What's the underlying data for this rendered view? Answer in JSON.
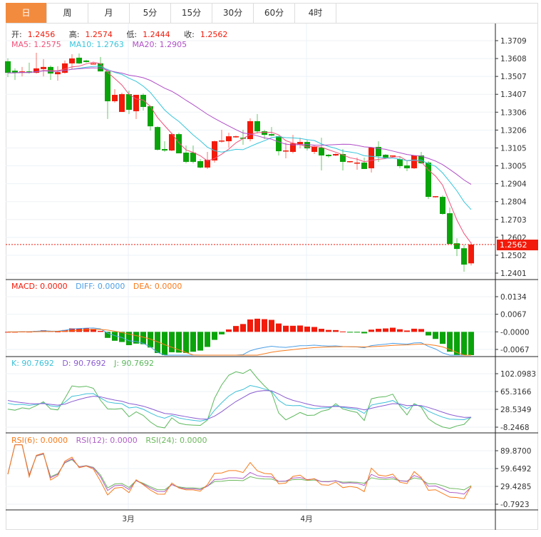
{
  "tabs": [
    {
      "label": "日",
      "active": true
    },
    {
      "label": "周",
      "active": false
    },
    {
      "label": "月",
      "active": false
    },
    {
      "label": "5分",
      "active": false
    },
    {
      "label": "15分",
      "active": false
    },
    {
      "label": "30分",
      "active": false
    },
    {
      "label": "60分",
      "active": false
    },
    {
      "label": "4时",
      "active": false
    }
  ],
  "ohlc_legend": {
    "open_label": "开:",
    "open": "1.2456",
    "high_label": "高:",
    "high": "1.2574",
    "low_label": "低:",
    "low": "1.2444",
    "close_label": "收:",
    "close": "1.2562"
  },
  "ma_legend": {
    "ma5": "MA5: 1.2575",
    "ma10": "MA10: 1.2763",
    "ma20": "MA20: 1.2905"
  },
  "macd_legend": {
    "macd": "MACD: 0.0000",
    "diff": "DIFF: 0.0000",
    "dea": "DEA: 0.0000"
  },
  "kdj_legend": {
    "k": "K: 90.7692",
    "d": "D: 90.7692",
    "j": "J: 90.7692"
  },
  "rsi_legend": {
    "rsi6": "RSI(6): 0.0000",
    "rsi12": "RSI(12): 0.0000",
    "rsi24": "RSI(24): 0.0000"
  },
  "current_price": "1.2562",
  "colors": {
    "up": "#f21a0a",
    "down": "#0aa40a",
    "ma5": "#f0517a",
    "ma10": "#36c5dc",
    "ma20": "#b04fc8",
    "diff": "#4d9fe6",
    "dea": "#f97b1c",
    "k": "#3cc0d8",
    "d": "#8a5cd0",
    "j": "#5cb85c",
    "rsi6": "#f77b1c",
    "rsi12": "#b05fc8",
    "rsi24": "#6cb85c",
    "accent": "#f38b3e"
  },
  "chart_data": {
    "type": "candlestick",
    "price_axis": {
      "ticks": [
        "1.3709",
        "1.3608",
        "1.3507",
        "1.3407",
        "1.3306",
        "1.3206",
        "1.3105",
        "1.3005",
        "1.2904",
        "1.2804",
        "1.2703",
        "1.2602",
        "1.2502",
        "1.2401"
      ],
      "range": [
        1.2401,
        1.3709
      ]
    },
    "macd_axis": {
      "ticks": [
        "0.0134",
        "0.0067",
        "-0.0000",
        "-0.0067"
      ],
      "range": [
        -0.0067,
        0.0134
      ]
    },
    "kdj_axis": {
      "ticks": [
        "102.0983",
        "65.3166",
        "28.5349",
        "-8.2468"
      ],
      "range": [
        -8.2468,
        102.0983
      ]
    },
    "rsi_axis": {
      "ticks": [
        "89.8700",
        "59.6492",
        "29.4285",
        "-0.7923"
      ],
      "range": [
        -0.7923,
        89.87
      ]
    },
    "x_labels": [
      {
        "label": "3月",
        "index": 17
      },
      {
        "label": "4月",
        "index": 42
      }
    ],
    "candles": [
      [
        1.3593,
        1.3609,
        1.3504,
        1.3528
      ],
      [
        1.354,
        1.3553,
        1.3488,
        1.3528
      ],
      [
        1.3528,
        1.3561,
        1.3508,
        1.3536
      ],
      [
        1.3536,
        1.3585,
        1.3524,
        1.3528
      ],
      [
        1.3528,
        1.3641,
        1.3524,
        1.3553
      ],
      [
        1.3549,
        1.3605,
        1.3508,
        1.3561
      ],
      [
        1.3561,
        1.3569,
        1.3488,
        1.3524
      ],
      [
        1.352,
        1.3565,
        1.3484,
        1.3532
      ],
      [
        1.3528,
        1.3597,
        1.3524,
        1.3581
      ],
      [
        1.3581,
        1.3633,
        1.3549,
        1.3609
      ],
      [
        1.3613,
        1.3637,
        1.3577,
        1.3581
      ],
      [
        1.3597,
        1.3601,
        1.3585,
        1.3589
      ],
      [
        1.3577,
        1.3585,
        1.3577,
        1.3581
      ],
      [
        1.3581,
        1.3617,
        1.3536,
        1.3536
      ],
      [
        1.3536,
        1.3544,
        1.3268,
        1.3368
      ],
      [
        1.3368,
        1.3436,
        1.336,
        1.3404
      ],
      [
        1.3308,
        1.3416,
        1.3308,
        1.3408
      ],
      [
        1.3408,
        1.3428,
        1.3296,
        1.332
      ],
      [
        1.3312,
        1.3404,
        1.3268,
        1.3404
      ],
      [
        1.3404,
        1.3412,
        1.3316,
        1.3336
      ],
      [
        1.334,
        1.3344,
        1.3203,
        1.3227
      ],
      [
        1.3223,
        1.3227,
        1.3091,
        1.3095
      ],
      [
        1.3099,
        1.3143,
        1.3083,
        1.3091
      ],
      [
        1.3091,
        1.3191,
        1.3087,
        1.3183
      ],
      [
        1.3183,
        1.3191,
        1.3075,
        1.3075
      ],
      [
        1.3079,
        1.3119,
        1.3019,
        1.3027
      ],
      [
        1.3079,
        1.3119,
        1.3019,
        1.3027
      ],
      [
        1.3031,
        1.3043,
        1.2991,
        1.2995
      ],
      [
        1.2995,
        1.3083,
        1.2987,
        1.3039
      ],
      [
        1.3035,
        1.3147,
        1.3023,
        1.3143
      ],
      [
        1.3143,
        1.3207,
        1.3135,
        1.3147
      ],
      [
        1.3143,
        1.3191,
        1.3107,
        1.3171
      ],
      [
        1.3167,
        1.3175,
        1.3163,
        1.3171
      ],
      [
        1.3163,
        1.3207,
        1.3123,
        1.3159
      ],
      [
        1.3155,
        1.3272,
        1.3143,
        1.3256
      ],
      [
        1.3256,
        1.3296,
        1.3187,
        1.3199
      ],
      [
        1.3199,
        1.3207,
        1.3155,
        1.3179
      ],
      [
        1.3183,
        1.3223,
        1.3171,
        1.3175
      ],
      [
        1.3171,
        1.3175,
        1.3063,
        1.3087
      ],
      [
        1.3087,
        1.3135,
        1.3047,
        1.3091
      ],
      [
        1.3083,
        1.3179,
        1.3075,
        1.3131
      ],
      [
        1.3127,
        1.3163,
        1.3103,
        1.3139
      ],
      [
        1.3139,
        1.3151,
        1.3091,
        1.3103
      ],
      [
        1.3083,
        1.3115,
        1.3071,
        1.3111
      ],
      [
        1.3107,
        1.3163,
        1.2979,
        1.3063
      ],
      [
        1.3067,
        1.3071,
        1.3051,
        1.3059
      ],
      [
        1.3063,
        1.3075,
        1.3059,
        1.3071
      ],
      [
        1.3071,
        1.3099,
        1.2979,
        1.3027
      ],
      [
        1.3027,
        1.3031,
        1.3023,
        1.3031
      ],
      [
        1.3019,
        1.3051,
        1.2983,
        1.3023
      ],
      [
        1.3023,
        1.3051,
        1.2987,
        1.2987
      ],
      [
        1.2991,
        1.3107,
        1.2967,
        1.3107
      ],
      [
        1.3111,
        1.3143,
        1.3027,
        1.3059
      ],
      [
        1.3067,
        1.3071,
        1.3043,
        1.3051
      ],
      [
        1.3059,
        1.3063,
        1.3055,
        1.3063
      ],
      [
        1.3043,
        1.3059,
        1.2991,
        1.3003
      ],
      [
        1.3007,
        1.3035,
        1.2975,
        1.2991
      ],
      [
        1.2991,
        1.3063,
        1.2987,
        1.3063
      ],
      [
        1.3063,
        1.3083,
        1.3015,
        1.3019
      ],
      [
        1.3023,
        1.3031,
        1.2818,
        1.283
      ],
      [
        1.283,
        1.2834,
        1.2826,
        1.2834
      ],
      [
        1.283,
        1.2838,
        1.273,
        1.2734
      ],
      [
        1.2738,
        1.277,
        1.2565,
        1.2565
      ],
      [
        1.2569,
        1.2597,
        1.2497,
        1.2537
      ],
      [
        1.2541,
        1.2561,
        1.2409,
        1.2449
      ],
      [
        1.2456,
        1.2574,
        1.2444,
        1.2562
      ]
    ]
  }
}
